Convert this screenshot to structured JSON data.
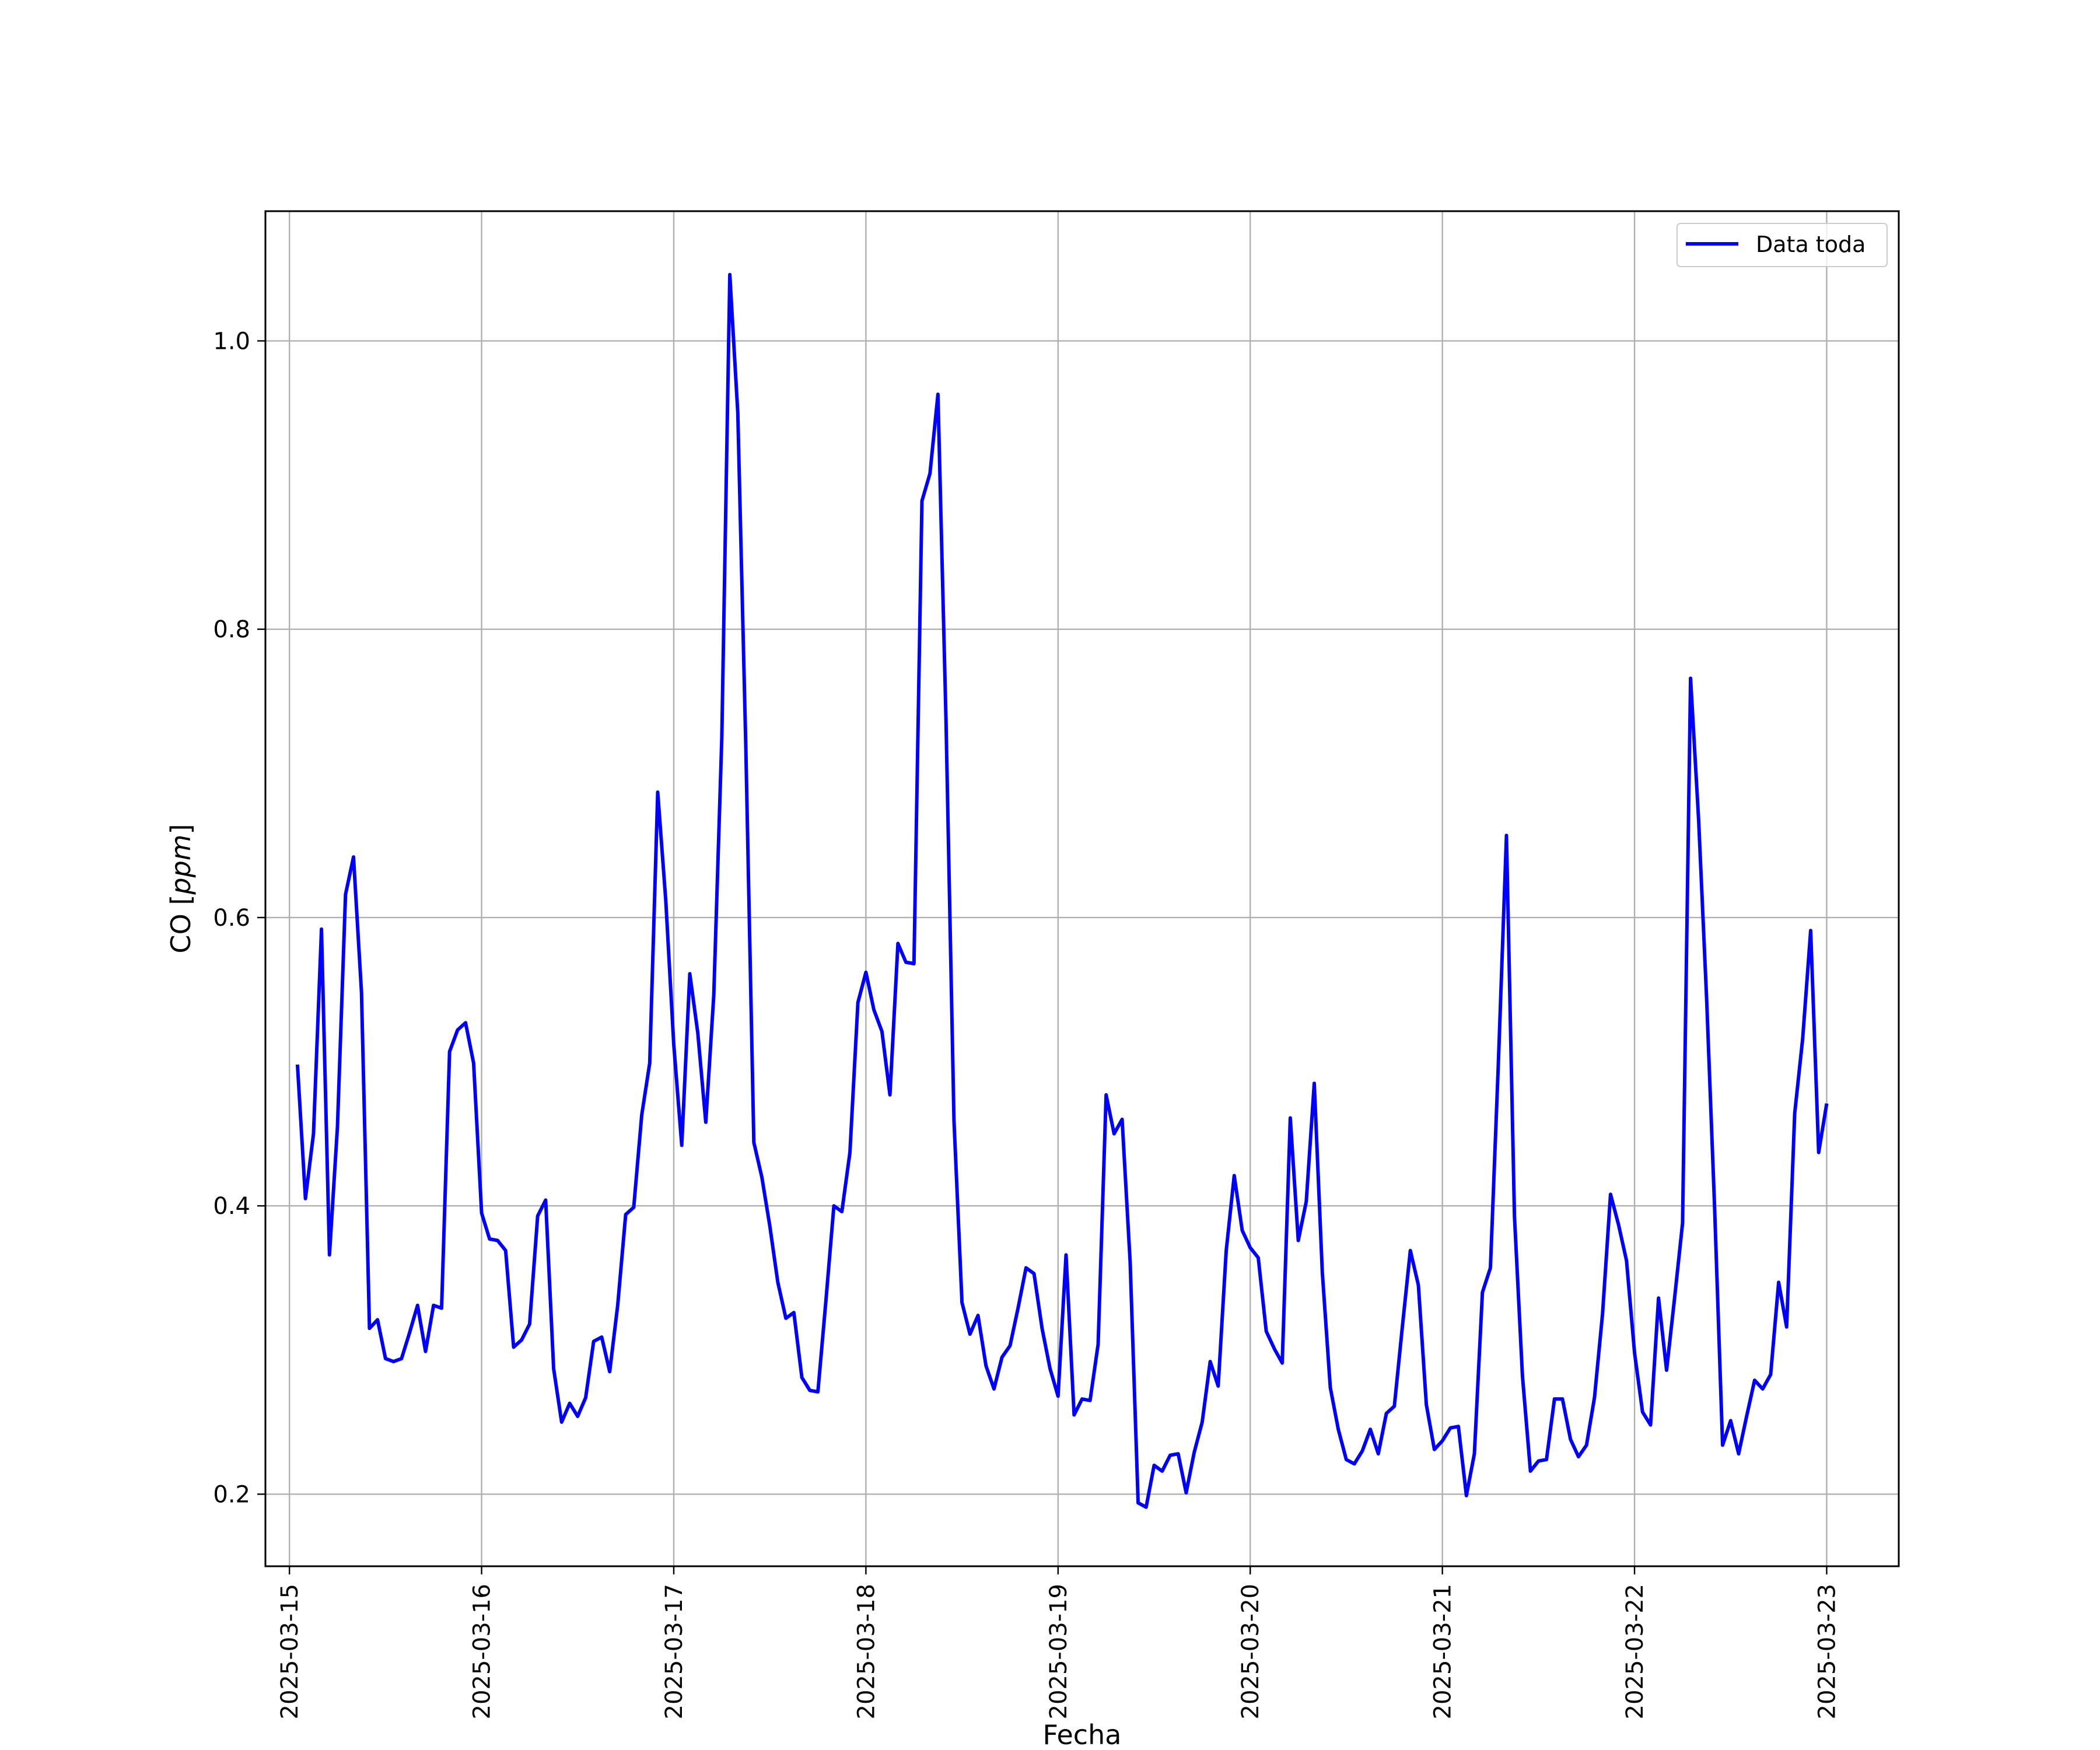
{
  "chart_data": {
    "type": "line",
    "title": "",
    "xlabel": "Fecha",
    "ylabel_prefix": "CO [",
    "ylabel_unit": "ppm",
    "ylabel_suffix": "]",
    "x_range": [
      "2025-03-14T21:00",
      "2025-03-23T09:00"
    ],
    "ylim": [
      0.15,
      1.09
    ],
    "x_ticks": [
      "2025-03-15",
      "2025-03-16",
      "2025-03-17",
      "2025-03-18",
      "2025-03-19",
      "2025-03-20",
      "2025-03-21",
      "2025-03-22",
      "2025-03-23"
    ],
    "y_ticks": [
      0.2,
      0.4,
      0.6,
      0.8,
      1.0
    ],
    "y_tick_labels": [
      "0.2",
      "0.4",
      "0.6",
      "0.8",
      "1.0"
    ],
    "grid": true,
    "legend_position": "top-right",
    "series": [
      {
        "name": "Data toda",
        "color": "#0000ff",
        "start": "2025-03-15T01:00",
        "interval_hours": 1,
        "values": [
          0.498,
          0.405,
          0.45,
          0.592,
          0.366,
          0.455,
          0.616,
          0.642,
          0.548,
          0.315,
          0.321,
          0.294,
          0.292,
          0.294,
          0.312,
          0.331,
          0.299,
          0.331,
          0.329,
          0.507,
          0.522,
          0.527,
          0.499,
          0.395,
          0.377,
          0.376,
          0.369,
          0.302,
          0.307,
          0.318,
          0.393,
          0.404,
          0.287,
          0.25,
          0.263,
          0.254,
          0.267,
          0.306,
          0.309,
          0.285,
          0.331,
          0.394,
          0.399,
          0.463,
          0.499,
          0.687,
          0.612,
          0.512,
          0.442,
          0.561,
          0.52,
          0.458,
          0.546,
          0.725,
          1.046,
          0.95,
          0.719,
          0.444,
          0.42,
          0.386,
          0.347,
          0.322,
          0.326,
          0.281,
          0.272,
          0.271,
          0.334,
          0.4,
          0.396,
          0.437,
          0.541,
          0.562,
          0.536,
          0.521,
          0.477,
          0.582,
          0.569,
          0.568,
          0.889,
          0.908,
          0.963,
          0.737,
          0.459,
          0.333,
          0.311,
          0.324,
          0.289,
          0.273,
          0.295,
          0.303,
          0.329,
          0.357,
          0.353,
          0.315,
          0.287,
          0.268,
          0.366,
          0.255,
          0.266,
          0.265,
          0.304,
          0.477,
          0.45,
          0.46,
          0.361,
          0.194,
          0.191,
          0.22,
          0.216,
          0.227,
          0.228,
          0.201,
          0.229,
          0.25,
          0.292,
          0.275,
          0.369,
          0.421,
          0.383,
          0.371,
          0.364,
          0.313,
          0.301,
          0.291,
          0.461,
          0.376,
          0.403,
          0.485,
          0.354,
          0.274,
          0.245,
          0.224,
          0.221,
          0.23,
          0.245,
          0.228,
          0.256,
          0.261,
          0.316,
          0.369,
          0.345,
          0.262,
          0.231,
          0.237,
          0.246,
          0.247,
          0.199,
          0.228,
          0.34,
          0.357,
          0.5,
          0.657,
          0.393,
          0.282,
          0.216,
          0.223,
          0.224,
          0.266,
          0.266,
          0.238,
          0.226,
          0.234,
          0.267,
          0.325,
          0.408,
          0.387,
          0.362,
          0.298,
          0.257,
          0.248,
          0.336,
          0.286,
          0.336,
          0.388,
          0.766,
          0.668,
          0.544,
          0.399,
          0.234,
          0.251,
          0.228,
          0.254,
          0.279,
          0.273,
          0.283,
          0.347,
          0.316,
          0.464,
          0.516,
          0.591,
          0.437,
          0.471
        ]
      }
    ]
  }
}
